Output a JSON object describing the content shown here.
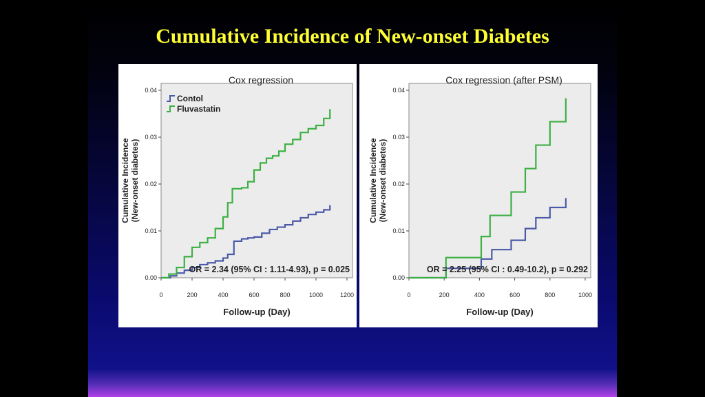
{
  "slide": {
    "title": "Cumulative Incidence of New-onset Diabetes"
  },
  "colors": {
    "control": "#4a5aa8",
    "fluvastatin": "#3cb043",
    "title": "#ffff33",
    "plot_bg": "#ececec"
  },
  "chart_data": [
    {
      "type": "line",
      "step": true,
      "title": "Cox regression",
      "xlabel": "Follow-up (Day)",
      "ylabel": "Cumulative Incidence",
      "ylabel2": "(New-onset diabetes)",
      "xlim": [
        0,
        1200
      ],
      "ylim": [
        0,
        0.04
      ],
      "xticks": [
        "0",
        "200",
        "400",
        "600",
        "800",
        "1000",
        "1200"
      ],
      "yticks": [
        "0.00",
        "0.01",
        "0.02",
        "0.03",
        "0.04"
      ],
      "legend": [
        "Contol",
        "Fluvastatin"
      ],
      "legend_position": "top-left",
      "annotation": "OR = 2.34 (95% CI : 1.11-4.93), p = 0.025",
      "series": [
        {
          "name": "Contol",
          "color": "#4a5aa8",
          "x": [
            0,
            60,
            100,
            150,
            200,
            250,
            300,
            350,
            400,
            430,
            470,
            520,
            560,
            600,
            650,
            700,
            750,
            800,
            850,
            900,
            950,
            1000,
            1050,
            1090
          ],
          "y": [
            0,
            0.0004,
            0.001,
            0.0016,
            0.0022,
            0.0028,
            0.0032,
            0.0036,
            0.0042,
            0.005,
            0.0078,
            0.0083,
            0.0085,
            0.0087,
            0.0095,
            0.0103,
            0.0108,
            0.0113,
            0.0121,
            0.0128,
            0.0135,
            0.014,
            0.0145,
            0.0155
          ]
        },
        {
          "name": "Fluvastatin",
          "color": "#3cb043",
          "x": [
            0,
            50,
            100,
            150,
            200,
            250,
            300,
            350,
            400,
            430,
            460,
            480,
            520,
            560,
            600,
            640,
            680,
            720,
            760,
            800,
            850,
            900,
            950,
            1000,
            1050,
            1090
          ],
          "y": [
            0,
            0.0008,
            0.0022,
            0.0045,
            0.0065,
            0.0075,
            0.0085,
            0.0105,
            0.013,
            0.016,
            0.019,
            0.019,
            0.0192,
            0.0205,
            0.023,
            0.0245,
            0.0255,
            0.026,
            0.027,
            0.0285,
            0.0295,
            0.031,
            0.0318,
            0.0325,
            0.034,
            0.036
          ]
        }
      ]
    },
    {
      "type": "line",
      "step": true,
      "title": "Cox regression (after PSM)",
      "xlabel": "Follow-up (Day)",
      "ylabel": "Cumulative Incidence",
      "ylabel2": "(New-onset diabetes)",
      "xlim": [
        0,
        1000
      ],
      "ylim": [
        0,
        0.04
      ],
      "xticks": [
        "0",
        "200",
        "400",
        "600",
        "800",
        "1000"
      ],
      "yticks": [
        "0.00",
        "0.01",
        "0.02",
        "0.03",
        "0.04"
      ],
      "annotation": "OR = 2.25 (95% CI : 0.49-10.2), p = 0.292",
      "series": [
        {
          "name": "",
          "color": "#4a5aa8",
          "x": [
            0,
            210,
            410,
            470,
            580,
            660,
            720,
            800,
            890
          ],
          "y": [
            0,
            0.002,
            0.004,
            0.006,
            0.008,
            0.0105,
            0.0128,
            0.015,
            0.017
          ]
        },
        {
          "name": "",
          "color": "#3cb043",
          "x": [
            0,
            210,
            410,
            460,
            580,
            660,
            720,
            800,
            890
          ],
          "y": [
            0,
            0.0043,
            0.0088,
            0.0133,
            0.0183,
            0.0233,
            0.0283,
            0.0333,
            0.0383
          ]
        }
      ]
    }
  ]
}
